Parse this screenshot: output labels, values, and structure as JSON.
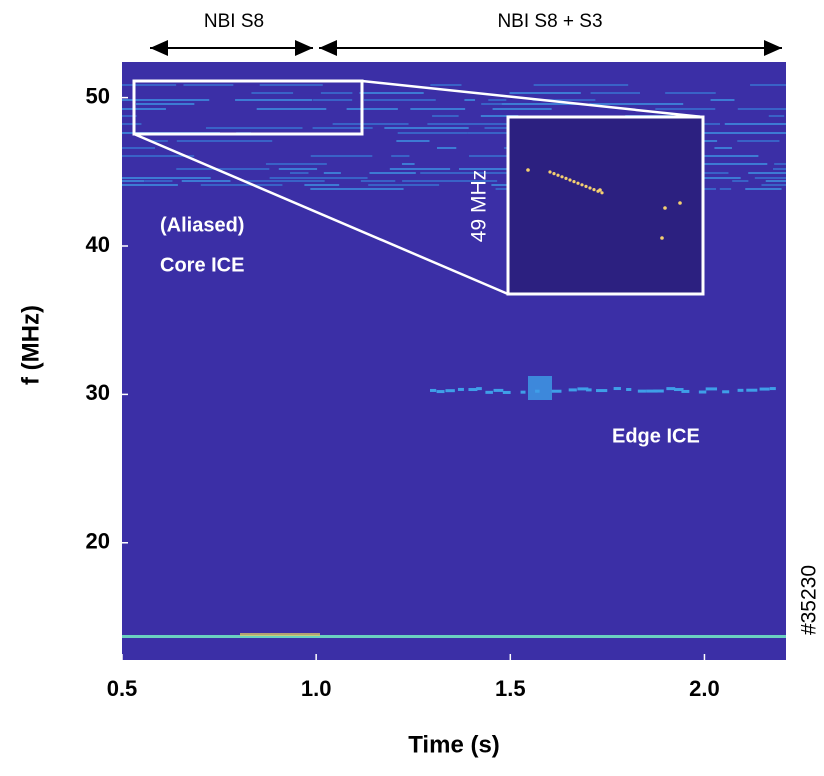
{
  "chart_data": {
    "type": "spectrogram",
    "x_label": "Time (s)",
    "y_label": "f (MHz)",
    "xlim": [
      0.5,
      2.21
    ],
    "ylim": [
      12.1,
      52.4
    ],
    "xticks": [
      {
        "value": 0.5,
        "label": "0.5"
      },
      {
        "value": 1.0,
        "label": "1.0"
      },
      {
        "value": 1.5,
        "label": "1.5"
      },
      {
        "value": 2.0,
        "label": "2.0"
      }
    ],
    "yticks": [
      20,
      30,
      40,
      50
    ],
    "annotations": {
      "phase1": "NBI S8",
      "phase2": "NBI S8 + S3",
      "core1": "(Aliased)",
      "core2": "Core ICE",
      "inset": "49 MHz",
      "edge": "Edge ICE",
      "shot": "#35230"
    }
  }
}
